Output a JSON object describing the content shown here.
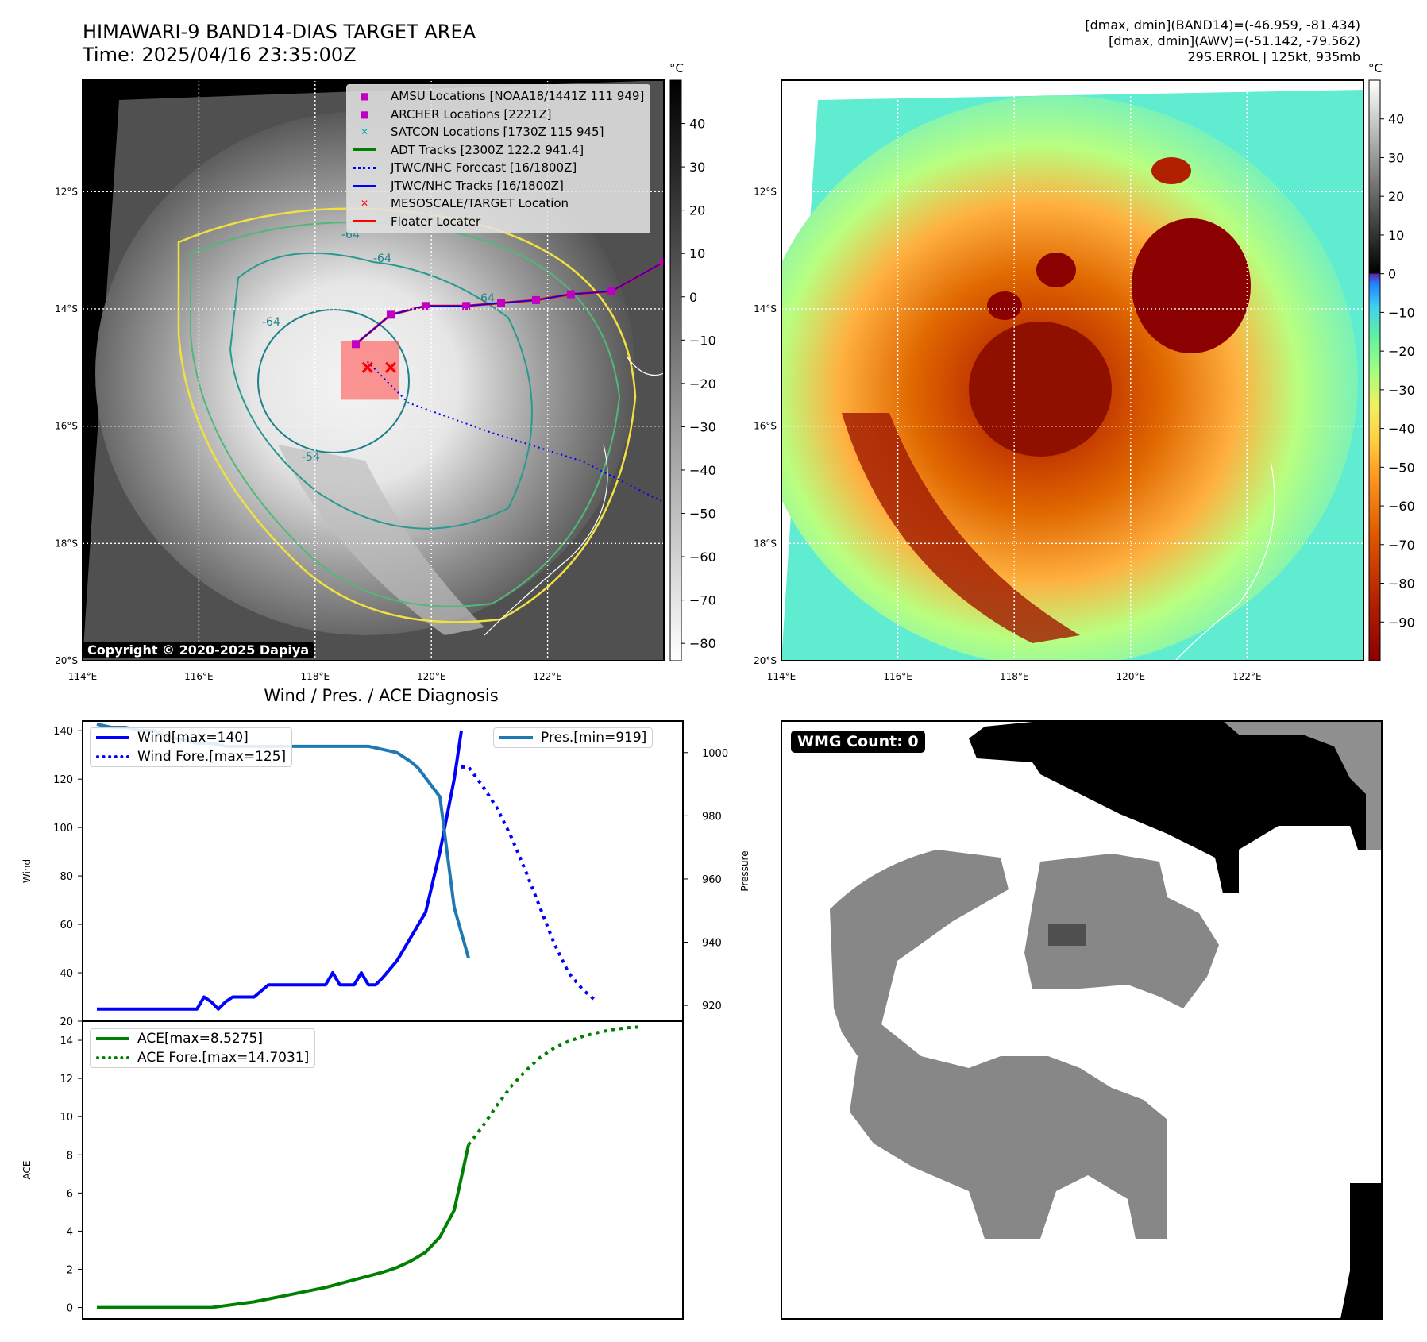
{
  "header": {
    "title_line1": "HIMAWARI-9 BAND14-DIAS TARGET AREA",
    "title_line2": "Time: 2025/04/16 23:35:00Z",
    "stats_line1": "[dmax, dmin](BAND14)=(-46.959, -81.434)",
    "stats_line2": "[dmax, dmin](AWV)=(-51.142, -79.562)",
    "stats_line3": "29S.ERROL | 125kt, 935mb"
  },
  "copyright": "Copyright © 2020-2025 Dapiya",
  "wmg_label": "WMG Count: 0",
  "colors": {
    "wind": "#0000ff",
    "pressure": "#1f77b4",
    "ace": "#008000",
    "track_red": "#ff0000",
    "magenta": "#c000c0",
    "teal": "#00b0b0"
  },
  "map": {
    "lat_labels": [
      "12°S",
      "14°S",
      "16°S",
      "18°S",
      "20°S"
    ],
    "lon_labels": [
      "114°E",
      "116°E",
      "118°E",
      "120°E",
      "122°E"
    ],
    "lon_range": [
      114,
      124
    ],
    "lat_range": [
      -20,
      -10.1
    ],
    "legend": [
      {
        "label": "AMSU Locations [NOAA18/1441Z 111 949]",
        "style": "sq",
        "color": "#c000c0"
      },
      {
        "label": "ARCHER Locations [2221Z]",
        "style": "sq",
        "color": "#c000c0"
      },
      {
        "label": "SATCON Locations [1730Z 115 945]",
        "style": "x",
        "color": "#00b0b0"
      },
      {
        "label": "ADT Tracks [2300Z 122.2 941.4]",
        "style": "line",
        "color": "#008000"
      },
      {
        "label": "JTWC/NHC Forecast [16/1800Z]",
        "style": "dot",
        "color": "#0000ff"
      },
      {
        "label": "JTWC/NHC Tracks [16/1800Z]",
        "style": "lineDot",
        "color": "#0000ff"
      },
      {
        "label": "MESOSCALE/TARGET Location",
        "style": "x",
        "color": "#ff0000"
      },
      {
        "label": "Floater Locater",
        "style": "line",
        "color": "#ff0000"
      }
    ],
    "contour_labels": [
      "-64",
      "-64",
      "-64",
      "-64",
      "-54"
    ],
    "target_box": {
      "lon": [
        118.45,
        119.45
      ],
      "lat": [
        -15.55,
        -14.55
      ]
    },
    "mesoscale_x": [
      118.9,
      119.3
    ],
    "mesoscale_lat": -15.0,
    "forecast_track": [
      [
        118.9,
        -14.9
      ],
      [
        119.6,
        -15.6
      ],
      [
        121.0,
        -16.1
      ],
      [
        122.6,
        -16.6
      ],
      [
        124.0,
        -17.3
      ]
    ],
    "track": [
      [
        118.7,
        -14.6
      ],
      [
        119.3,
        -14.1
      ],
      [
        119.9,
        -13.95
      ],
      [
        120.6,
        -13.95
      ],
      [
        121.2,
        -13.9
      ],
      [
        121.8,
        -13.85
      ],
      [
        122.4,
        -13.75
      ],
      [
        123.1,
        -13.7
      ],
      [
        124.0,
        -13.2
      ]
    ],
    "colorbar_gray": {
      "unit": "°C",
      "ticks": [
        40,
        30,
        20,
        10,
        0,
        -10,
        -20,
        -30,
        -40,
        -50,
        -60,
        -70,
        -80
      ],
      "range": [
        -84,
        50
      ]
    },
    "colorbar_color": {
      "unit": "°C",
      "ticks": [
        40,
        30,
        20,
        10,
        0,
        -10,
        -20,
        -30,
        -40,
        -50,
        -60,
        -70,
        -80,
        -90
      ],
      "range": [
        -100,
        50
      ]
    }
  },
  "chart_data": [
    {
      "type": "line",
      "title": "Wind / Pres. / ACE Diagnosis",
      "ylabel": "Wind",
      "y2label": "Pressure",
      "ylim": [
        20,
        144
      ],
      "y2lim": [
        915,
        1010
      ],
      "xlim": [
        0,
        84
      ],
      "yticks": [
        20,
        40,
        60,
        80,
        100,
        120,
        140
      ],
      "y2ticks": [
        920,
        940,
        960,
        980,
        1000
      ],
      "series": [
        {
          "name": "Wind[max=140]",
          "axis": "left",
          "style": "solid",
          "color": "#0000ff",
          "x": [
            2,
            4,
            6,
            8,
            10,
            12,
            14,
            16,
            17,
            18,
            19,
            20,
            21,
            22,
            24,
            26,
            28,
            30,
            32,
            34,
            35,
            36,
            37,
            38,
            39,
            40,
            41,
            42,
            44,
            46,
            48,
            50,
            52,
            53
          ],
          "y": [
            25,
            25,
            25,
            25,
            25,
            25,
            25,
            25,
            30,
            28,
            25,
            28,
            30,
            30,
            30,
            35,
            35,
            35,
            35,
            35,
            40,
            35,
            35,
            35,
            40,
            35,
            35,
            38,
            45,
            55,
            65,
            90,
            120,
            140
          ]
        },
        {
          "name": "Wind Fore.[max=125]",
          "axis": "left",
          "style": "dotted",
          "color": "#0000ff",
          "x": [
            53,
            54,
            56,
            58,
            60,
            62,
            64,
            66,
            68,
            70,
            72
          ],
          "y": [
            125,
            125,
            117,
            108,
            96,
            82,
            67,
            52,
            40,
            33,
            28
          ]
        },
        {
          "name": "Pres.[min=919]",
          "axis": "right",
          "style": "solid",
          "color": "#1f77b4",
          "x": [
            2,
            4,
            6,
            8,
            10,
            12,
            14,
            16,
            18,
            20,
            22,
            24,
            26,
            28,
            30,
            32,
            34,
            36,
            38,
            40,
            42,
            44,
            46,
            47,
            48,
            50,
            52,
            54
          ],
          "y": [
            1009,
            1008,
            1008,
            1007,
            1007,
            1005,
            1004,
            1003,
            1003,
            1002,
            1002,
            1002,
            1002,
            1002,
            1002,
            1002,
            1002,
            1002,
            1002,
            1002,
            1001,
            1000,
            997,
            995,
            992,
            986,
            951,
            935
          ]
        }
      ]
    },
    {
      "type": "line",
      "ylabel": "ACE",
      "ylim": [
        -0.6,
        15
      ],
      "xlim": [
        0,
        84
      ],
      "yticks": [
        0,
        2,
        4,
        6,
        8,
        10,
        12,
        14
      ],
      "series": [
        {
          "name": "ACE[max=8.5275]",
          "style": "solid",
          "color": "#008000",
          "x": [
            2,
            6,
            10,
            14,
            18,
            20,
            22,
            24,
            26,
            28,
            30,
            32,
            34,
            36,
            38,
            40,
            42,
            44,
            46,
            48,
            50,
            52,
            54
          ],
          "y": [
            0,
            0,
            0,
            0,
            0,
            0.1,
            0.2,
            0.3,
            0.45,
            0.6,
            0.75,
            0.9,
            1.05,
            1.25,
            1.45,
            1.65,
            1.85,
            2.1,
            2.45,
            2.9,
            3.7,
            5.1,
            8.53
          ]
        },
        {
          "name": "ACE Fore.[max=14.7031]",
          "style": "dotted",
          "color": "#008000",
          "x": [
            54,
            56,
            58,
            60,
            62,
            64,
            66,
            68,
            70,
            72,
            74,
            76,
            78
          ],
          "y": [
            8.53,
            9.5,
            10.6,
            11.6,
            12.4,
            13.1,
            13.6,
            13.95,
            14.2,
            14.4,
            14.55,
            14.65,
            14.7
          ]
        }
      ]
    }
  ]
}
